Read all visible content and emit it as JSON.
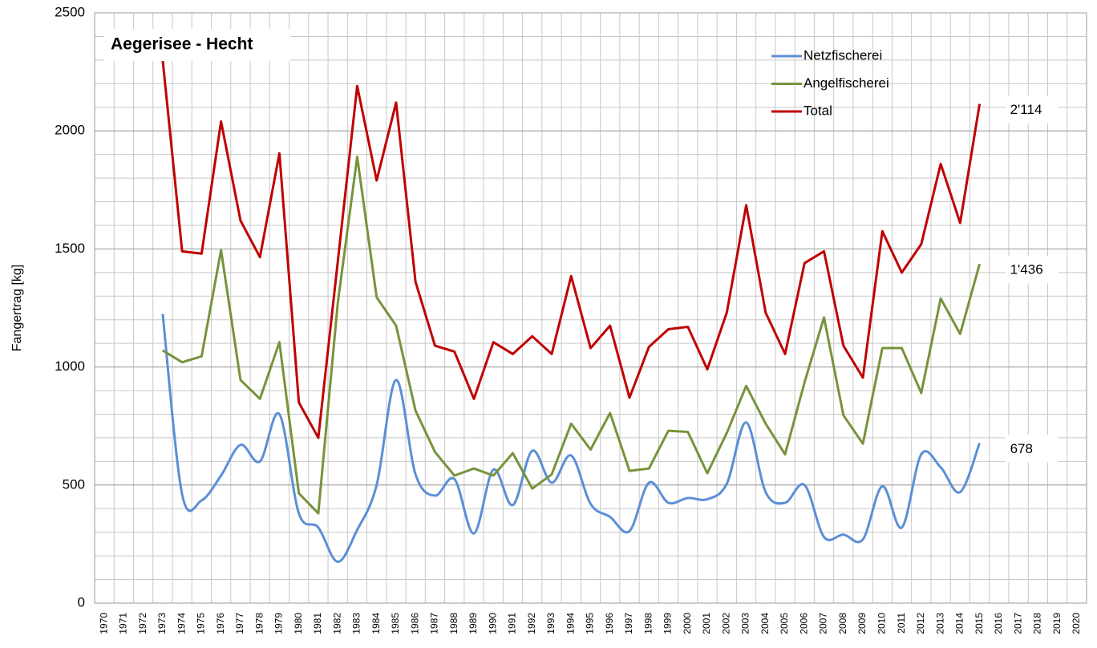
{
  "chart_data": {
    "type": "line",
    "title": "Aegerisee - Hecht",
    "y_label": "Fangertrag [kg]",
    "categories": [
      "1970",
      "1971",
      "1972",
      "1973",
      "1974",
      "1975",
      "1976",
      "1977",
      "1978",
      "1979",
      "1980",
      "1981",
      "1982",
      "1983",
      "1984",
      "1985",
      "1986",
      "1987",
      "1988",
      "1989",
      "1990",
      "1991",
      "1992",
      "1993",
      "1994",
      "1995",
      "1996",
      "1997",
      "1998",
      "1999",
      "2000",
      "2001",
      "2002",
      "2003",
      "2004",
      "2005",
      "2006",
      "2007",
      "2008",
      "2009",
      "2010",
      "2011",
      "2012",
      "2013",
      "2014",
      "2015",
      "2016",
      "2017",
      "2018",
      "2019",
      "2020"
    ],
    "series": [
      {
        "name": "Netzfischerei",
        "color": "#5b8fd6",
        "smooth": true,
        "values": [
          null,
          null,
          null,
          1225,
          460,
          435,
          540,
          670,
          600,
          800,
          380,
          320,
          175,
          310,
          500,
          945,
          545,
          455,
          525,
          295,
          565,
          415,
          645,
          510,
          625,
          420,
          365,
          305,
          510,
          425,
          445,
          440,
          505,
          765,
          470,
          425,
          500,
          280,
          290,
          270,
          495,
          320,
          630,
          575,
          470,
          678,
          null,
          null,
          null,
          null,
          null
        ],
        "value_labels": [
          null,
          null,
          null,
          null,
          null,
          null,
          null,
          null,
          null,
          null,
          null,
          null,
          null,
          null,
          null,
          null,
          null,
          null,
          null,
          null,
          null,
          null,
          null,
          null,
          null,
          null,
          null,
          null,
          null,
          null,
          null,
          null,
          null,
          null,
          null,
          null,
          null,
          null,
          null,
          null,
          null,
          null,
          null,
          null,
          null,
          "678",
          null,
          null,
          null,
          null,
          null
        ]
      },
      {
        "name": "Angelfischerei",
        "color": "#77933c",
        "smooth": false,
        "values": [
          null,
          null,
          null,
          1070,
          1020,
          1045,
          1495,
          945,
          865,
          1105,
          465,
          380,
          1270,
          1890,
          1295,
          1175,
          815,
          640,
          540,
          570,
          540,
          635,
          485,
          545,
          760,
          650,
          805,
          560,
          570,
          730,
          725,
          550,
          720,
          920,
          760,
          630,
          935,
          1210,
          795,
          675,
          1080,
          1080,
          890,
          1290,
          1140,
          1436,
          null,
          null,
          null,
          null,
          null
        ],
        "value_labels": [
          null,
          null,
          null,
          null,
          null,
          null,
          null,
          null,
          null,
          null,
          null,
          null,
          null,
          null,
          null,
          null,
          null,
          null,
          null,
          null,
          null,
          null,
          null,
          null,
          null,
          null,
          null,
          null,
          null,
          null,
          null,
          null,
          null,
          null,
          null,
          null,
          null,
          null,
          null,
          null,
          null,
          null,
          null,
          null,
          null,
          "1'436",
          null,
          null,
          null,
          null,
          null
        ]
      },
      {
        "name": "Total",
        "color": "#c00000",
        "smooth": false,
        "values": [
          null,
          null,
          null,
          2300,
          1490,
          1480,
          2040,
          1620,
          1465,
          1905,
          850,
          700,
          1445,
          2190,
          1790,
          2120,
          1360,
          1090,
          1065,
          865,
          1105,
          1055,
          1130,
          1055,
          1385,
          1080,
          1175,
          870,
          1085,
          1160,
          1170,
          990,
          1230,
          1685,
          1230,
          1055,
          1440,
          1490,
          1090,
          955,
          1575,
          1400,
          1520,
          1860,
          1610,
          2114,
          null,
          null,
          null,
          null,
          null
        ],
        "value_labels": [
          null,
          null,
          null,
          null,
          null,
          null,
          null,
          null,
          null,
          null,
          null,
          null,
          null,
          null,
          null,
          null,
          null,
          null,
          null,
          null,
          null,
          null,
          null,
          null,
          null,
          null,
          null,
          null,
          null,
          null,
          null,
          null,
          null,
          null,
          null,
          null,
          null,
          null,
          null,
          null,
          null,
          null,
          null,
          null,
          null,
          "2'114",
          null,
          null,
          null,
          null,
          null
        ]
      }
    ],
    "ylim": [
      0,
      2500
    ],
    "yticks": [
      0,
      500,
      1000,
      1500,
      2000,
      2500
    ],
    "minor_grid": 100,
    "grid": true,
    "legend": "top-right"
  }
}
